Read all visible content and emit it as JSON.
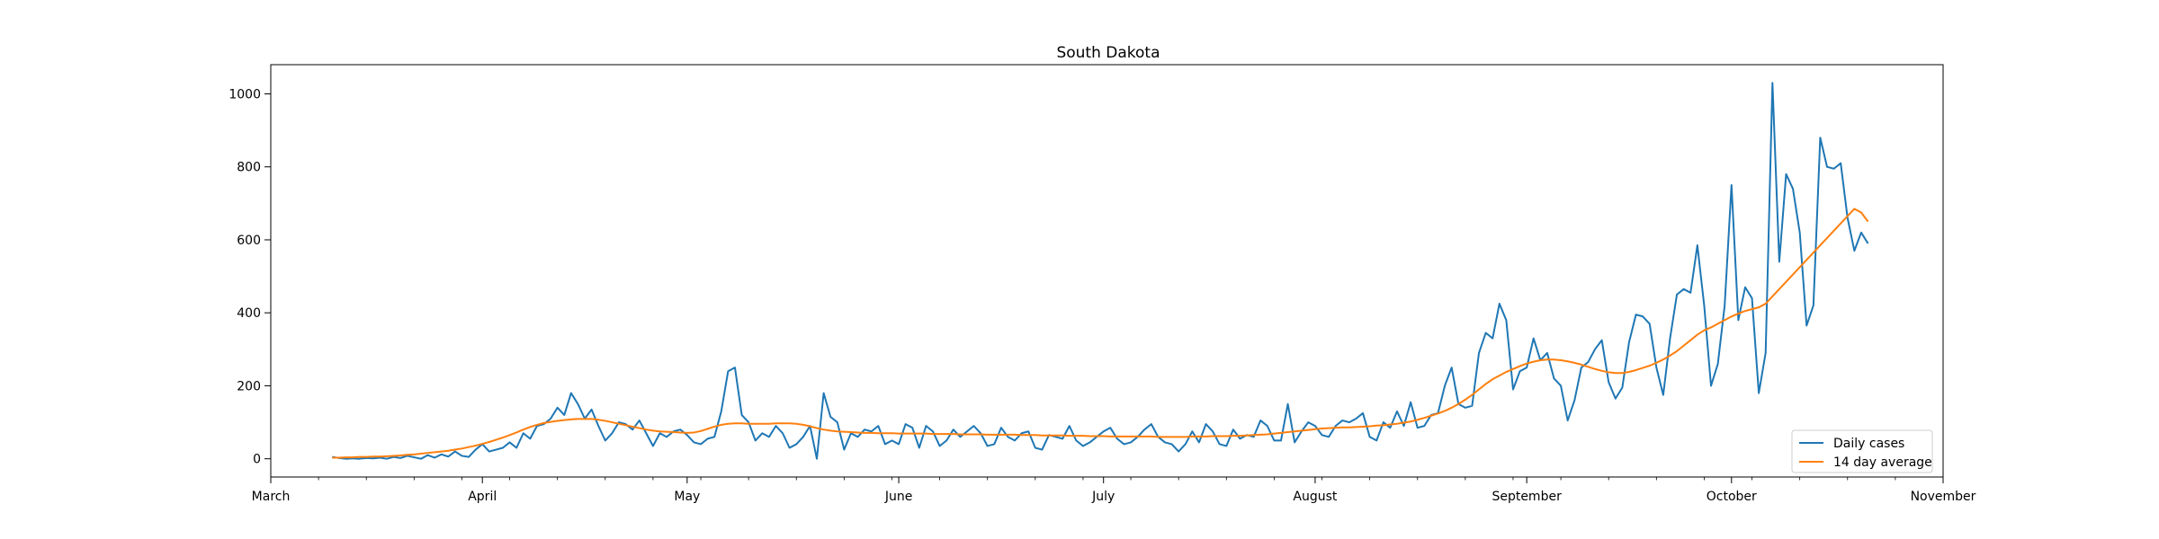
{
  "chart_data": {
    "type": "line",
    "title": "South Dakota",
    "xlabel": "",
    "ylabel": "",
    "x_start_date": "2020-03-10",
    "x_axis": {
      "min": "2020-03-01",
      "max": "2020-11-01",
      "tick_dates": [
        "2020-03-01",
        "2020-04-01",
        "2020-05-01",
        "2020-06-01",
        "2020-07-01",
        "2020-08-01",
        "2020-09-01",
        "2020-10-01",
        "2020-11-01"
      ],
      "tick_labels": [
        "March",
        "April",
        "May",
        "June",
        "July",
        "August",
        "September",
        "October",
        "November"
      ]
    },
    "y_axis": {
      "min": -50,
      "max": 1080,
      "ticks": [
        0,
        200,
        400,
        600,
        800,
        1000
      ],
      "tick_labels": [
        "0",
        "200",
        "400",
        "600",
        "800",
        "1000"
      ]
    },
    "grid": false,
    "legend": {
      "position": "lower-right",
      "entries": [
        "Daily cases",
        "14 day average"
      ]
    },
    "series": [
      {
        "name": "Daily cases",
        "color": "#1f77b4",
        "values": [
          5,
          2,
          0,
          1,
          0,
          2,
          1,
          3,
          0,
          5,
          2,
          8,
          4,
          0,
          10,
          3,
          12,
          6,
          20,
          8,
          5,
          25,
          40,
          20,
          25,
          30,
          45,
          30,
          70,
          55,
          90,
          95,
          110,
          140,
          120,
          180,
          150,
          110,
          135,
          90,
          50,
          70,
          100,
          95,
          80,
          105,
          70,
          35,
          70,
          60,
          75,
          80,
          65,
          45,
          40,
          55,
          60,
          130,
          240,
          250,
          120,
          100,
          50,
          70,
          60,
          90,
          70,
          30,
          40,
          60,
          90,
          0,
          180,
          115,
          100,
          25,
          70,
          60,
          80,
          75,
          90,
          40,
          50,
          40,
          95,
          85,
          30,
          90,
          75,
          35,
          50,
          80,
          60,
          75,
          90,
          70,
          35,
          40,
          85,
          60,
          50,
          70,
          75,
          30,
          25,
          65,
          60,
          55,
          90,
          50,
          35,
          45,
          60,
          75,
          85,
          55,
          40,
          45,
          60,
          80,
          95,
          60,
          45,
          40,
          20,
          40,
          75,
          45,
          95,
          75,
          40,
          35,
          80,
          55,
          65,
          60,
          105,
          90,
          50,
          50,
          150,
          45,
          75,
          100,
          90,
          65,
          60,
          90,
          105,
          100,
          110,
          125,
          60,
          50,
          100,
          85,
          130,
          90,
          155,
          85,
          90,
          120,
          125,
          200,
          250,
          150,
          140,
          145,
          290,
          345,
          330,
          425,
          380,
          190,
          240,
          250,
          330,
          270,
          290,
          220,
          200,
          105,
          160,
          250,
          265,
          300,
          325,
          210,
          165,
          195,
          320,
          395,
          390,
          370,
          250,
          175,
          330,
          450,
          465,
          455,
          585,
          420,
          200,
          260,
          420,
          750,
          380,
          470,
          440,
          180,
          290,
          1030,
          540,
          780,
          740,
          620,
          365,
          420,
          880,
          800,
          795,
          810,
          660,
          570,
          620,
          590
        ],
        "values_start_date": "2020-03-10"
      },
      {
        "name": "14 day average",
        "color": "#ff7f0e",
        "values": [
          3,
          3,
          4,
          4,
          5,
          5,
          6,
          6,
          7,
          8,
          9,
          11,
          12,
          14,
          16,
          18,
          20,
          22,
          25,
          28,
          32,
          36,
          41,
          46,
          52,
          58,
          65,
          72,
          80,
          87,
          93,
          98,
          101,
          104,
          106,
          108,
          109,
          109,
          109,
          107,
          104,
          100,
          96,
          92,
          88,
          84,
          80,
          77,
          75,
          74,
          73,
          72,
          71,
          72,
          76,
          82,
          88,
          93,
          96,
          97,
          97,
          96,
          96,
          96,
          96,
          97,
          97,
          97,
          96,
          93,
          89,
          84,
          80,
          77,
          75,
          74,
          73,
          72,
          71,
          71,
          70,
          70,
          70,
          69,
          69,
          69,
          69,
          69,
          68,
          68,
          68,
          68,
          67,
          67,
          67,
          67,
          66,
          66,
          66,
          66,
          66,
          65,
          65,
          65,
          64,
          64,
          64,
          64,
          63,
          63,
          63,
          62,
          62,
          62,
          61,
          61,
          61,
          61,
          61,
          61,
          61,
          60,
          60,
          60,
          60,
          60,
          61,
          61,
          61,
          62,
          62,
          62,
          63,
          63,
          64,
          65,
          66,
          67,
          69,
          71,
          73,
          75,
          77,
          79,
          81,
          83,
          84,
          85,
          86,
          86,
          87,
          88,
          89,
          91,
          92,
          94,
          96,
          99,
          102,
          107,
          112,
          118,
          124,
          131,
          140,
          150,
          162,
          175,
          190,
          205,
          218,
          228,
          238,
          246,
          254,
          261,
          266,
          270,
          272,
          272,
          270,
          267,
          263,
          258,
          252,
          246,
          241,
          237,
          235,
          235,
          238,
          243,
          249,
          255,
          263,
          272,
          283,
          295,
          310,
          325,
          340,
          352,
          360,
          370,
          380,
          390,
          398,
          405,
          410,
          415,
          425,
          445,
          465,
          485,
          505,
          525,
          545,
          565,
          585,
          605,
          625,
          645,
          665,
          685,
          675,
          650
        ]
      }
    ]
  }
}
